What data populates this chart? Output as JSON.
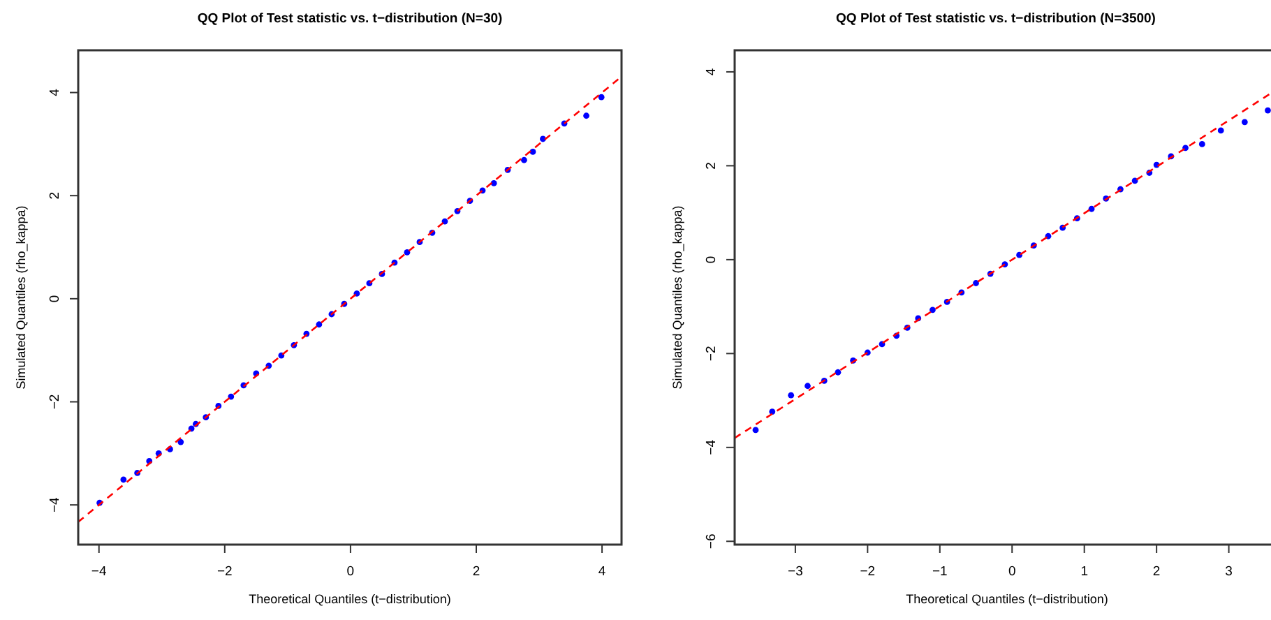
{
  "chart_data": [
    {
      "type": "scatter",
      "title": "QQ Plot of Test statistic vs. t−distribution (N=30)",
      "xlabel": "Theoretical Quantiles (t−distribution)",
      "ylabel": "Simulated Quantiles (rho_kappa)",
      "xlim": [
        -4.33,
        4.31
      ],
      "ylim": [
        -4.77,
        4.82
      ],
      "xticks": [
        -4,
        -2,
        0,
        2,
        4
      ],
      "yticks": [
        -4,
        -2,
        0,
        2,
        4
      ],
      "series": [
        {
          "marker": "circle",
          "color": "#0000ff",
          "x": [
            -3.99,
            -3.61,
            -3.39,
            -3.2,
            -3.05,
            -2.87,
            -2.7,
            -2.53,
            -2.46,
            -2.3,
            -2.1,
            -1.9,
            -1.7,
            -1.5,
            -1.3,
            -1.1,
            -0.9,
            -0.7,
            -0.5,
            -0.3,
            -0.1,
            0.1,
            0.3,
            0.5,
            0.7,
            0.9,
            1.1,
            1.3,
            1.5,
            1.7,
            1.9,
            2.1,
            2.28,
            2.5,
            2.76,
            2.9,
            3.06,
            3.4,
            3.75,
            3.99
          ],
          "values": [
            -3.96,
            -3.51,
            -3.38,
            -3.15,
            -3.0,
            -2.92,
            -2.78,
            -2.52,
            -2.43,
            -2.3,
            -2.08,
            -1.9,
            -1.68,
            -1.45,
            -1.3,
            -1.1,
            -0.9,
            -0.68,
            -0.5,
            -0.3,
            -0.1,
            0.1,
            0.3,
            0.48,
            0.7,
            0.9,
            1.1,
            1.28,
            1.5,
            1.7,
            1.9,
            2.1,
            2.24,
            2.5,
            2.69,
            2.85,
            3.1,
            3.4,
            3.55,
            3.91
          ]
        },
        {
          "type": "line",
          "color": "#ff0000",
          "line_style": "dashed",
          "marker": "none",
          "x": [
            -4.33,
            4.31
          ],
          "values": [
            -4.33,
            4.31
          ]
        }
      ]
    },
    {
      "type": "scatter",
      "title": "QQ Plot of Test statistic vs. t−distribution (N=3500)",
      "xlabel": "Theoretical Quantiles (t−distribution)",
      "ylabel": "Simulated Quantiles (rho_kappa)",
      "xlim": [
        -3.84,
        3.7
      ],
      "ylim": [
        -6.07,
        4.46
      ],
      "xticks": [
        -3,
        -2,
        -1,
        0,
        1,
        2,
        3
      ],
      "yticks": [
        -6,
        -4,
        -2,
        0,
        2,
        4
      ],
      "series": [
        {
          "marker": "circle",
          "color": "#0000ff",
          "x": [
            -3.55,
            -3.32,
            -3.06,
            -2.83,
            -2.6,
            -2.41,
            -2.2,
            -2.0,
            -1.8,
            -1.6,
            -1.45,
            -1.3,
            -1.1,
            -0.9,
            -0.7,
            -0.5,
            -0.3,
            -0.1,
            0.1,
            0.3,
            0.5,
            0.7,
            0.9,
            1.1,
            1.3,
            1.5,
            1.7,
            1.9,
            2.0,
            2.2,
            2.4,
            2.63,
            2.89,
            3.22,
            3.54
          ],
          "values": [
            -3.63,
            -3.24,
            -2.89,
            -2.69,
            -2.58,
            -2.4,
            -2.15,
            -1.98,
            -1.8,
            -1.62,
            -1.45,
            -1.25,
            -1.07,
            -0.9,
            -0.7,
            -0.5,
            -0.3,
            -0.1,
            0.1,
            0.3,
            0.5,
            0.68,
            0.88,
            1.08,
            1.3,
            1.5,
            1.68,
            1.85,
            2.02,
            2.2,
            2.38,
            2.46,
            2.75,
            2.93,
            3.18
          ]
        },
        {
          "type": "line",
          "color": "#ff0000",
          "line_style": "dashed",
          "marker": "none",
          "x": [
            -3.84,
            3.7
          ],
          "values": [
            -3.8,
            3.66
          ]
        }
      ]
    }
  ]
}
